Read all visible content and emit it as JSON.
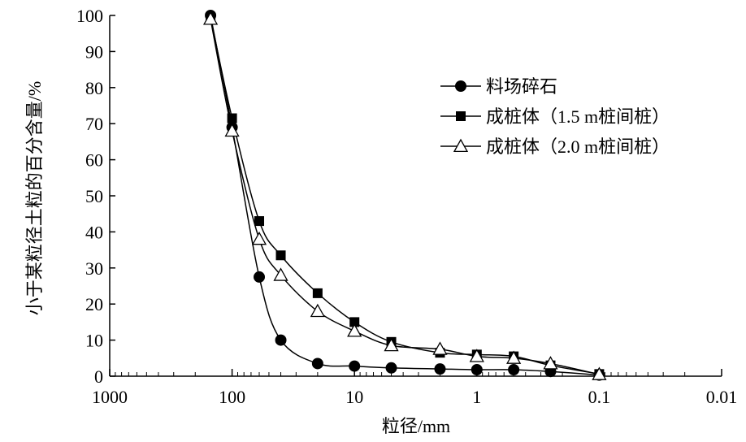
{
  "chart_data": {
    "type": "line",
    "xlabel": "粒径/mm",
    "ylabel": "小于某粒径土粒的百分含量/%",
    "x_scale": "log",
    "x_reversed": true,
    "xlim": [
      1000,
      0.01
    ],
    "ylim": [
      0,
      100
    ],
    "x_ticks": [
      "1000",
      "100",
      "10",
      "1",
      "0.1",
      "0.01"
    ],
    "y_ticks": [
      "0",
      "10",
      "20",
      "30",
      "40",
      "50",
      "60",
      "70",
      "80",
      "90",
      "100"
    ],
    "grid": false,
    "legend_position": "top-right",
    "series": [
      {
        "name": "料场碎石",
        "marker": "circle-filled",
        "x": [
          150,
          100,
          60,
          40,
          20,
          10,
          5,
          2,
          1,
          0.5,
          0.25,
          0.1
        ],
        "y": [
          100,
          69,
          27.5,
          10,
          3.5,
          2.8,
          2.3,
          2,
          1.8,
          1.8,
          1.3,
          0.3
        ]
      },
      {
        "name": "成桩体（1.5 m桩间桩）",
        "marker": "square-filled",
        "x": [
          150,
          100,
          60,
          40,
          20,
          10,
          5,
          2,
          1,
          0.5,
          0.25,
          0.1
        ],
        "y": [
          99.5,
          71.5,
          43,
          33.5,
          23,
          15,
          9.5,
          6.5,
          6,
          5.5,
          3,
          0.6
        ]
      },
      {
        "name": "成桩体（2.0 m桩间桩）",
        "marker": "triangle-open",
        "x": [
          150,
          100,
          60,
          40,
          20,
          10,
          5,
          2,
          1,
          0.5,
          0.25,
          0.1
        ],
        "y": [
          99,
          68,
          38,
          28,
          18,
          12.5,
          8.5,
          7.5,
          5.5,
          5,
          3.5,
          0.5
        ]
      }
    ]
  }
}
